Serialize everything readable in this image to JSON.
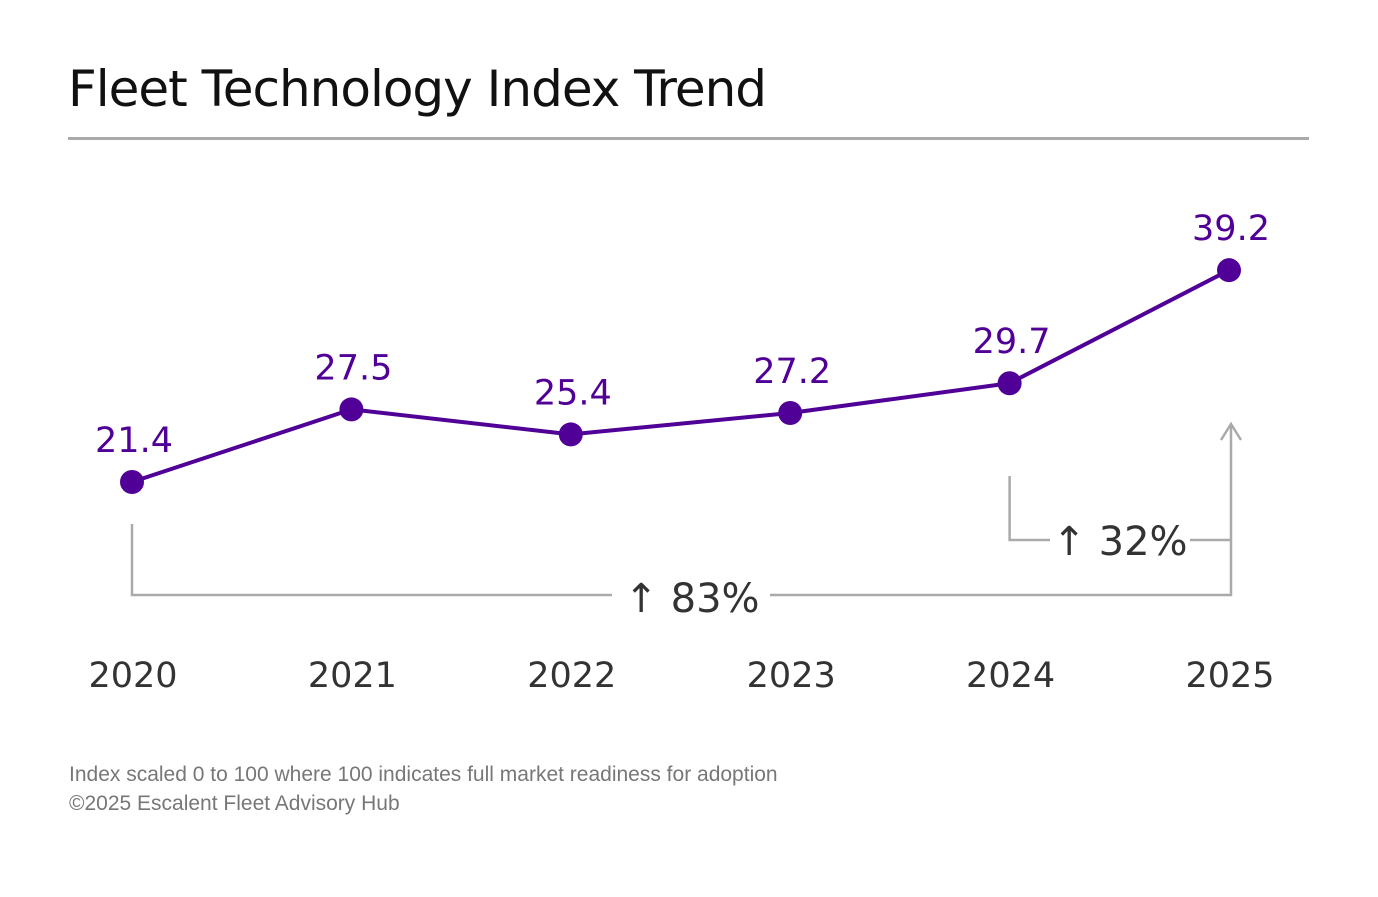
{
  "title": "Fleet Technology Index Trend",
  "chart_data": {
    "type": "line",
    "title": "Fleet Technology Index Trend",
    "categories": [
      "2020",
      "2021",
      "2022",
      "2023",
      "2024",
      "2025"
    ],
    "series": [
      {
        "name": "Fleet Technology Index",
        "values": [
          21.4,
          27.5,
          25.4,
          27.2,
          29.7,
          39.2
        ]
      }
    ],
    "data_labels": [
      "21.4",
      "27.5",
      "25.4",
      "27.2",
      "29.7",
      "39.2"
    ],
    "ylim": [
      0,
      100
    ],
    "grid": false,
    "annotations": [
      {
        "text": "↑ 83%",
        "from": "2020",
        "to": "2025"
      },
      {
        "text": "↑ 32%",
        "from": "2024",
        "to": "2025"
      }
    ],
    "colors": {
      "line": "#500096",
      "label": "#500096",
      "bracket": "#aaaaaa",
      "axis_text": "#333333"
    }
  },
  "footnotes": {
    "scale_note": "Index scaled 0 to 100 where 100 indicates full market readiness for adoption",
    "copyright": "©2025 Escalent Fleet Advisory Hub"
  }
}
